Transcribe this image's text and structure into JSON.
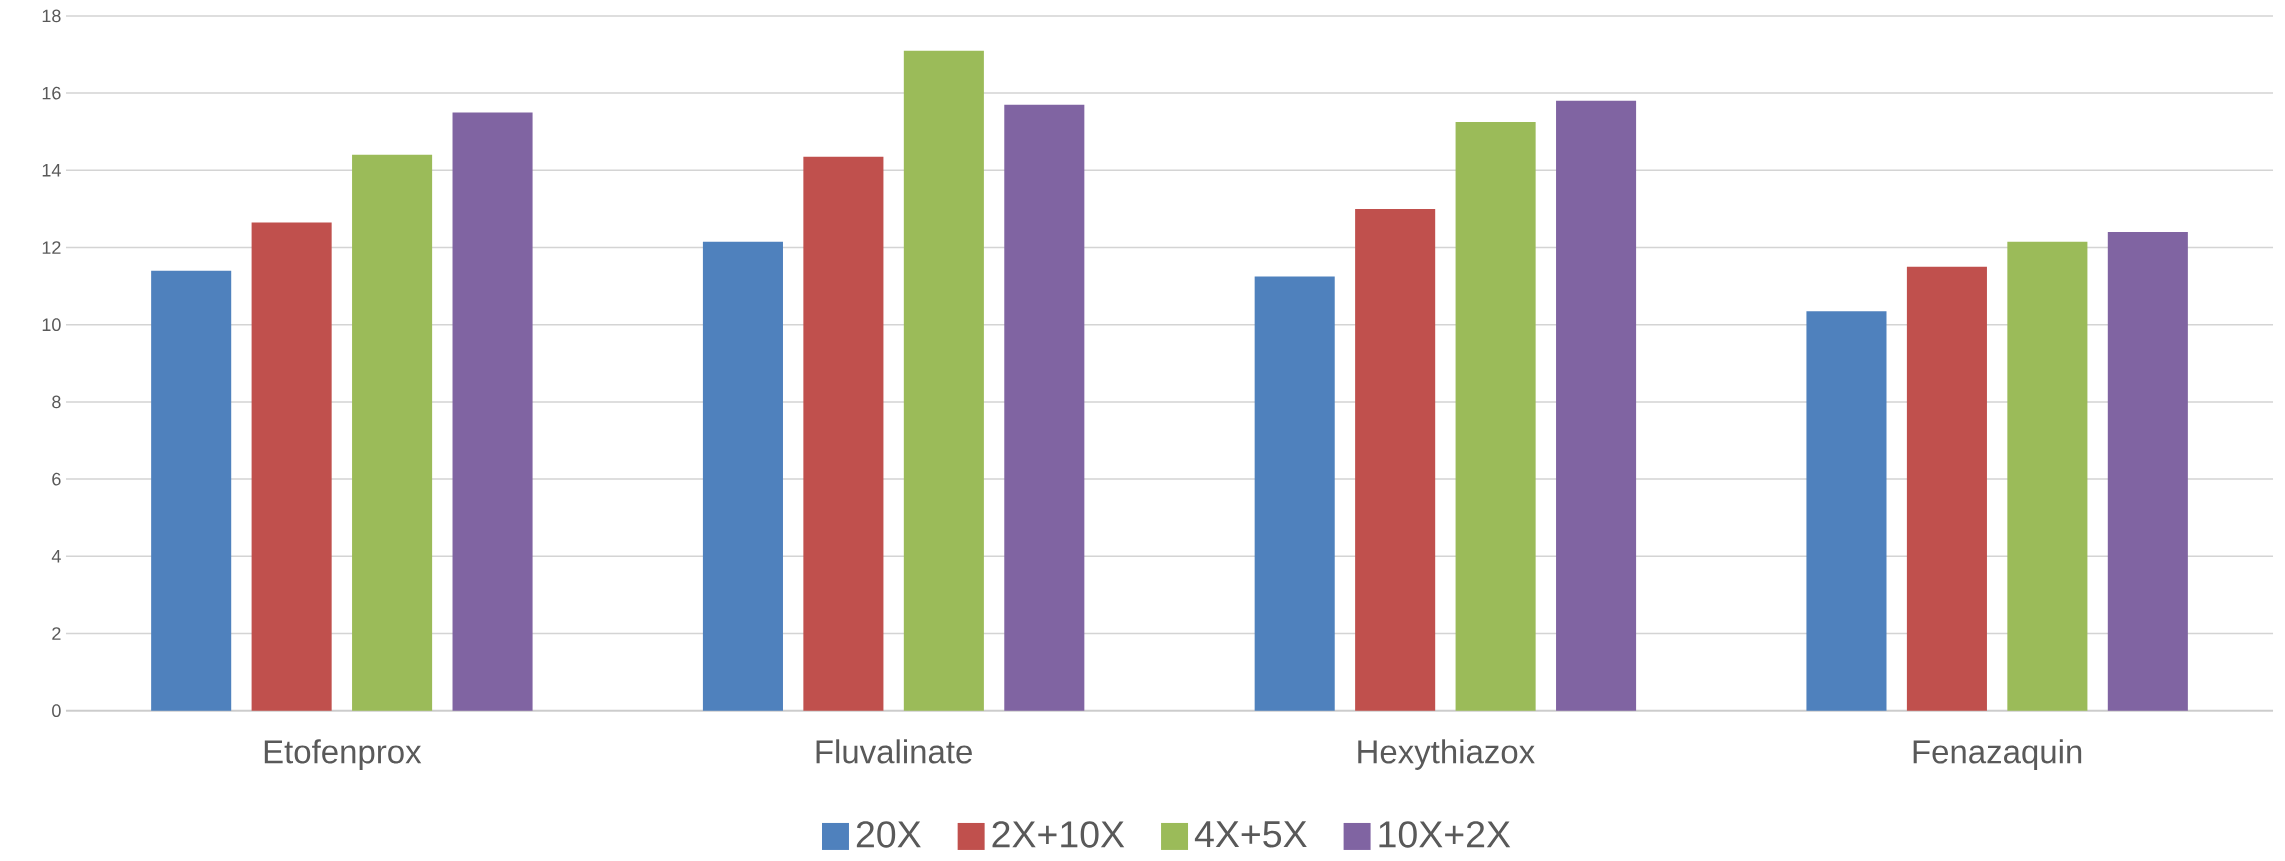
{
  "chart_data": {
    "type": "bar",
    "categories": [
      "Etofenprox",
      "Fluvalinate",
      "Hexythiazox",
      "Fenazaquin"
    ],
    "series": [
      {
        "name": "20X",
        "color": "#4f81bd",
        "values": [
          11.4,
          12.15,
          11.25,
          10.35
        ]
      },
      {
        "name": "2X+10X",
        "color": "#c0504d",
        "values": [
          12.65,
          14.35,
          13.0,
          11.5
        ]
      },
      {
        "name": "4X+5X",
        "color": "#9bbb59",
        "values": [
          14.4,
          17.1,
          15.25,
          12.15
        ]
      },
      {
        "name": "10X+2X",
        "color": "#8064a2",
        "values": [
          15.5,
          15.7,
          15.8,
          12.4
        ]
      }
    ],
    "ylim": [
      0,
      18
    ],
    "yticks": [
      0,
      2,
      4,
      6,
      8,
      10,
      12,
      14,
      16,
      18
    ],
    "grid": "y",
    "legend": "bottom"
  }
}
